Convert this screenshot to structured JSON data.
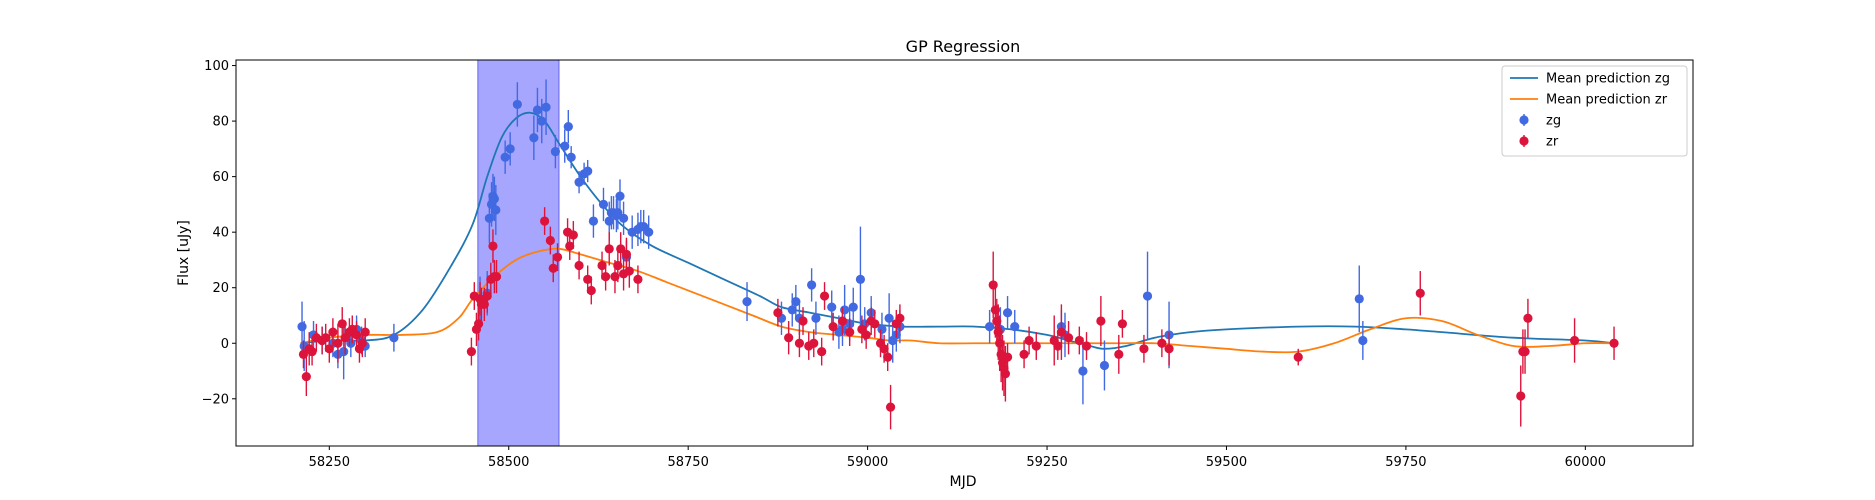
{
  "chart_data": {
    "type": "scatter",
    "title": "GP Regression",
    "xlabel": "MJD",
    "ylabel": "Flux [uJy]",
    "xlim": [
      58120,
      60150
    ],
    "ylim": [
      -37,
      102
    ],
    "xticks": [
      58250,
      58500,
      58750,
      59000,
      59250,
      59500,
      59750,
      60000
    ],
    "yticks": [
      -20,
      0,
      20,
      40,
      60,
      80,
      100
    ],
    "grid": false,
    "legend_position": "top-right",
    "shaded_region": {
      "x_start": 58457,
      "x_end": 58570,
      "color": "#a6a6ff"
    },
    "colors": {
      "zg_line": "#1f77b4",
      "zr_line": "#ff7f0e",
      "zg_points": "#4169e1",
      "zr_points": "#dc143c"
    },
    "series": [
      {
        "name": "Mean prediction zg",
        "kind": "line",
        "x": [
          58210,
          58250,
          58300,
          58340,
          58380,
          58420,
          58450,
          58470,
          58490,
          58510,
          58530,
          58550,
          58570,
          58600,
          58630,
          58660,
          58700,
          58750,
          58800,
          58850,
          58880,
          58920,
          58960,
          59000,
          59050,
          59100,
          59150,
          59200,
          59250,
          59280,
          59310,
          59330,
          59360,
          59400,
          59450,
          59500,
          59600,
          59680,
          59750,
          59800,
          59900,
          60000,
          60040
        ],
        "y": [
          0,
          1,
          1,
          3,
          12,
          28,
          43,
          60,
          74,
          81,
          83,
          80,
          72,
          60,
          50,
          42,
          35,
          29,
          23,
          17,
          13,
          11,
          9,
          7,
          6,
          6,
          6,
          5,
          3,
          1,
          -1,
          -2,
          -1,
          2,
          4,
          5,
          6,
          6,
          5,
          4,
          2,
          1,
          0
        ]
      },
      {
        "name": "Mean prediction zr",
        "kind": "line",
        "x": [
          58210,
          58250,
          58300,
          58350,
          58400,
          58430,
          58450,
          58480,
          58510,
          58540,
          58570,
          58600,
          58640,
          58680,
          58720,
          58780,
          58840,
          58880,
          58920,
          58960,
          59000,
          59030,
          59060,
          59100,
          59150,
          59200,
          59250,
          59300,
          59350,
          59400,
          59450,
          59500,
          59550,
          59600,
          59650,
          59700,
          59750,
          59800,
          59850,
          59900,
          59950,
          60000,
          60040
        ],
        "y": [
          0,
          2,
          3,
          3,
          4,
          9,
          16,
          24,
          30,
          33,
          34,
          32,
          29,
          26,
          22,
          16,
          10,
          6,
          4,
          3,
          2,
          1,
          1,
          0,
          0,
          0,
          0,
          0,
          0,
          0,
          -1,
          -2,
          -3,
          -3,
          0,
          5,
          9,
          8,
          3,
          -1,
          -1,
          0,
          0
        ]
      },
      {
        "name": "zg",
        "kind": "errorbar",
        "x": [
          58212,
          58215,
          58228,
          58240,
          58255,
          58262,
          58270,
          58280,
          58288,
          58295,
          58300,
          58340,
          58460,
          58470,
          58473,
          58476,
          58478,
          58480,
          58482,
          58495,
          58502,
          58512,
          58535,
          58540,
          58546,
          58552,
          58565,
          58578,
          58583,
          58587,
          58598,
          58605,
          58610,
          58618,
          58632,
          58640,
          58643,
          58646,
          58650,
          58652,
          58655,
          58660,
          58664,
          58672,
          58680,
          58684,
          58688,
          58695,
          58832,
          58880,
          58895,
          58900,
          58905,
          58922,
          58928,
          58950,
          58960,
          58965,
          58968,
          58975,
          58980,
          58990,
          58996,
          59005,
          59020,
          59030,
          59035,
          59040,
          59045,
          59170,
          59185,
          59195,
          59205,
          59270,
          59275,
          59300,
          59330,
          59390,
          59420,
          59685,
          59690
        ],
        "y": [
          6,
          -1,
          3,
          1,
          0,
          -4,
          -3,
          0,
          5,
          1,
          -1,
          2,
          16,
          18,
          45,
          50,
          53,
          52,
          48,
          67,
          70,
          86,
          74,
          84,
          80,
          85,
          69,
          71,
          78,
          67,
          58,
          61,
          62,
          44,
          50,
          44,
          47,
          47,
          46,
          47,
          53,
          45,
          31,
          40,
          41,
          42,
          42,
          40,
          15,
          9,
          12,
          15,
          9,
          21,
          9,
          13,
          4,
          5,
          12,
          7,
          13,
          23,
          7,
          11,
          5,
          9,
          1,
          3,
          6,
          6,
          5,
          11,
          6,
          6,
          3,
          -10,
          -8,
          17,
          3,
          16,
          1
        ],
        "yerr": [
          9,
          9,
          5,
          5,
          5,
          5,
          10,
          5,
          5,
          5,
          4,
          5,
          8,
          8,
          9,
          8,
          8,
          8,
          9,
          6,
          6,
          8,
          8,
          8,
          8,
          10,
          6,
          6,
          6,
          4,
          4,
          4,
          4,
          6,
          6,
          7,
          6,
          6,
          6,
          6,
          6,
          6,
          6,
          6,
          6,
          6,
          6,
          6,
          7,
          6,
          6,
          6,
          6,
          6,
          6,
          6,
          6,
          6,
          9,
          6,
          7,
          19,
          6,
          6,
          6,
          9,
          8,
          6,
          6,
          6,
          8,
          6,
          6,
          6,
          8,
          12,
          9,
          16,
          12,
          12,
          7
        ]
      },
      {
        "name": "zr",
        "kind": "errorbar",
        "x": [
          58214,
          58218,
          58222,
          58226,
          58232,
          58240,
          58245,
          58250,
          58255,
          58262,
          58268,
          58272,
          58278,
          58282,
          58288,
          58292,
          58296,
          58300,
          58448,
          58452,
          58455,
          58458,
          58460,
          58462,
          58466,
          58470,
          58475,
          58478,
          58480,
          58483,
          58550,
          58558,
          58562,
          58568,
          58582,
          58585,
          58590,
          58598,
          58610,
          58615,
          58630,
          58635,
          58640,
          58648,
          58652,
          58656,
          58660,
          58664,
          58668,
          58680,
          58875,
          58890,
          58905,
          58910,
          58918,
          58925,
          58936,
          58940,
          58952,
          58965,
          58975,
          58992,
          58998,
          59005,
          59010,
          59018,
          59023,
          59028,
          59032,
          59040,
          59045,
          59175,
          59178,
          59180,
          59182,
          59184,
          59186,
          59188,
          59190,
          59192,
          59195,
          59218,
          59225,
          59235,
          59260,
          59265,
          59270,
          59280,
          59295,
          59305,
          59325,
          59350,
          59355,
          59385,
          59410,
          59420,
          59600,
          59770,
          59910,
          59913,
          59916,
          59920,
          59985,
          60040
        ],
        "y": [
          -4,
          -12,
          -2,
          -3,
          2,
          1,
          2,
          -2,
          4,
          0,
          7,
          2,
          4,
          5,
          3,
          -2,
          0,
          4,
          -3,
          17,
          5,
          7,
          16,
          14,
          14,
          17,
          23,
          35,
          24,
          24,
          44,
          37,
          27,
          31,
          40,
          35,
          39,
          28,
          23,
          19,
          28,
          24,
          34,
          24,
          28,
          34,
          25,
          32,
          26,
          23,
          11,
          2,
          0,
          8,
          -1,
          0,
          -3,
          17,
          6,
          8,
          4,
          5,
          3,
          8,
          7,
          0,
          -2,
          -5,
          -23,
          7,
          9,
          21,
          12,
          8,
          4,
          0,
          -4,
          -7,
          -9,
          -11,
          -5,
          -4,
          1,
          -1,
          1,
          -1,
          4,
          2,
          1,
          -1,
          8,
          -4,
          7,
          -2,
          0,
          -2,
          -5,
          18,
          -19,
          -3,
          -3,
          9,
          1,
          0
        ],
        "yerr": [
          5,
          7,
          6,
          5,
          5,
          5,
          5,
          5,
          5,
          7,
          6,
          6,
          5,
          5,
          5,
          5,
          5,
          5,
          5,
          5,
          6,
          6,
          6,
          6,
          6,
          6,
          6,
          6,
          6,
          6,
          5,
          5,
          5,
          5,
          5,
          5,
          5,
          5,
          5,
          5,
          5,
          5,
          6,
          6,
          6,
          6,
          6,
          6,
          6,
          5,
          5,
          6,
          5,
          5,
          5,
          5,
          5,
          5,
          5,
          5,
          5,
          5,
          5,
          5,
          5,
          5,
          5,
          5,
          8,
          5,
          5,
          12,
          10,
          8,
          10,
          10,
          10,
          10,
          10,
          10,
          5,
          5,
          5,
          5,
          9,
          5,
          10,
          6,
          5,
          5,
          9,
          7,
          5,
          5,
          5,
          6,
          3,
          8,
          11,
          8,
          8,
          7,
          8,
          6
        ]
      }
    ]
  }
}
